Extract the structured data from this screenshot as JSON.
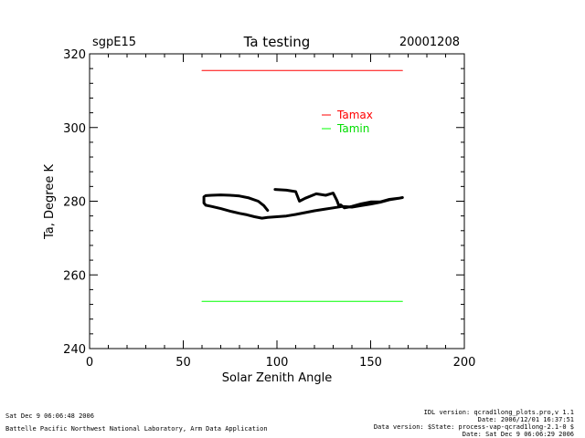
{
  "chart_data": {
    "type": "line",
    "title": "Ta testing",
    "site": "sgpE15",
    "date": "20001208",
    "xlabel": "Solar Zenith Angle",
    "ylabel": "Ta, Degree K",
    "xlim": [
      0,
      200
    ],
    "ylim": [
      240,
      320
    ],
    "xticks": [
      0,
      50,
      100,
      150,
      200
    ],
    "yticks": [
      240,
      260,
      280,
      300,
      320
    ],
    "legend": [
      {
        "name": "Tamax",
        "color": "#ff0000"
      },
      {
        "name": "Tamin",
        "color": "#00ff00"
      }
    ],
    "series": [
      {
        "name": "Tamax",
        "color": "#ff0000",
        "x": [
          60,
          167
        ],
        "y": [
          315.5,
          315.5
        ]
      },
      {
        "name": "Tamin",
        "color": "#00ff00",
        "x": [
          60,
          167
        ],
        "y": [
          252.8,
          252.8
        ]
      },
      {
        "name": "Ta",
        "color": "#000000",
        "x": [
          99,
          105,
          110,
          112,
          115,
          121,
          126,
          130,
          132,
          133,
          134,
          136,
          140,
          145,
          150,
          155,
          160,
          165,
          167,
          165,
          160,
          155,
          150,
          145,
          140,
          135,
          130,
          125,
          120,
          115,
          110,
          105,
          100,
          95,
          92,
          88,
          84,
          80,
          75,
          70,
          65,
          62,
          61,
          61,
          62,
          65,
          70,
          75,
          80,
          85,
          90,
          93,
          95
        ],
        "y": [
          283.2,
          283.0,
          282.6,
          280.0,
          280.8,
          282.0,
          281.6,
          282.2,
          280.2,
          278.8,
          279.0,
          278.2,
          278.6,
          279.3,
          279.8,
          279.8,
          280.5,
          280.8,
          281.0,
          280.8,
          280.4,
          279.7,
          279.2,
          278.8,
          278.4,
          278.6,
          278.2,
          277.8,
          277.4,
          276.9,
          276.4,
          276.0,
          275.8,
          275.6,
          275.4,
          275.8,
          276.3,
          276.7,
          277.3,
          278.0,
          278.6,
          278.9,
          279.5,
          281.2,
          281.5,
          281.6,
          281.7,
          281.6,
          281.4,
          280.9,
          280.0,
          278.8,
          277.5
        ]
      }
    ]
  },
  "footer": {
    "left_line1": "Sat Dec  9 06:06:48 2006",
    "left_line2": "Battelle Pacific Northwest National Laboratory, Arm Data Application",
    "right_line1": "IDL version: qcrad1long_plots.pro,v 1.1",
    "right_line2": "Date: 2006/12/01 16:37:51",
    "right_line3": "Data version: $State: process-vap-qcrad1long-2.1-0 $",
    "right_line4": "Date: Sat Dec  9 06:06:29 2006"
  }
}
